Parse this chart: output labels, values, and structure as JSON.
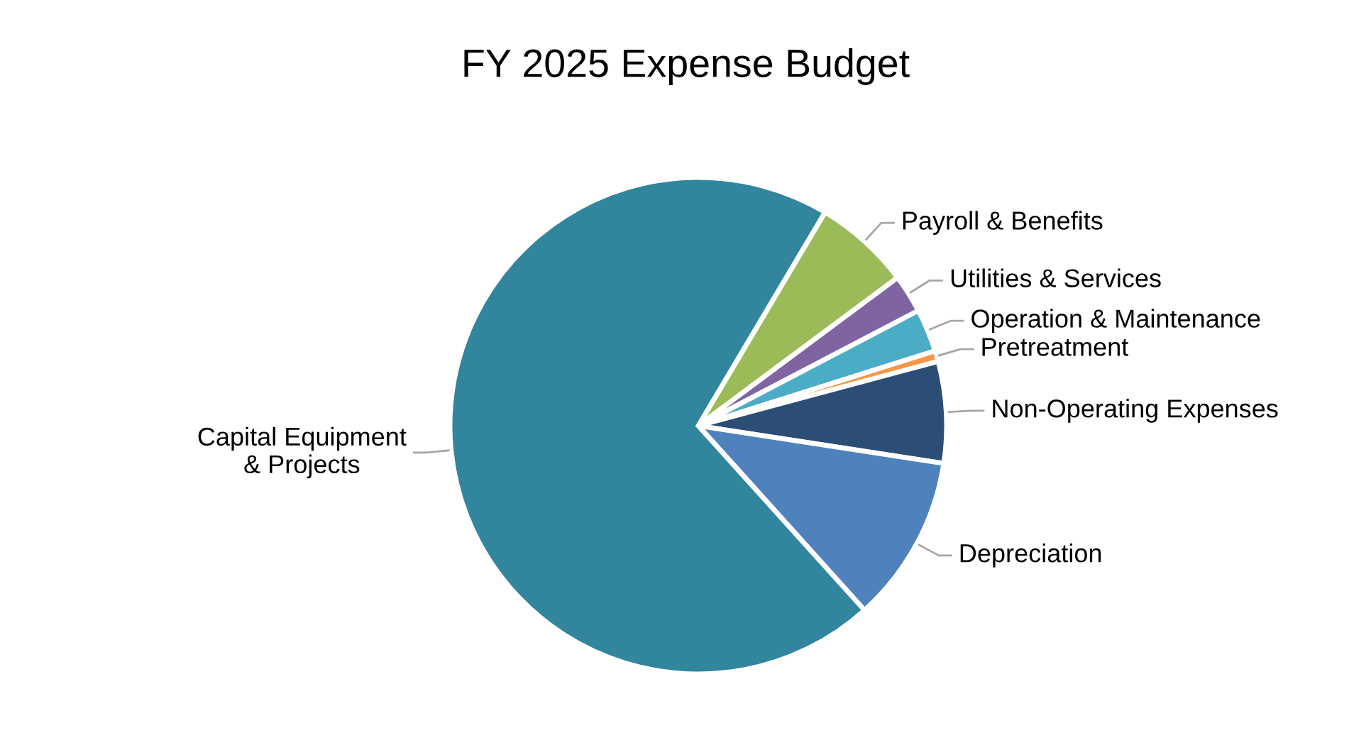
{
  "chart_data": {
    "type": "pie",
    "title": "FY 2025 Expense Budget",
    "categories": [
      "Payroll & Benefits",
      "Utilities & Services",
      "Operation & Maintenance",
      "Pretreatment",
      "Non-Operating Expenses",
      "Depreciation",
      "Capital Equipment\n& Projects"
    ],
    "values": [
      6.3,
      2.5,
      2.8,
      0.7,
      6.6,
      10.9,
      70.2
    ],
    "colors": [
      "#9bbb59",
      "#8064a2",
      "#4bacc6",
      "#f79646",
      "#2c4d75",
      "#4f81bd",
      "#31859c"
    ],
    "legend": false
  }
}
